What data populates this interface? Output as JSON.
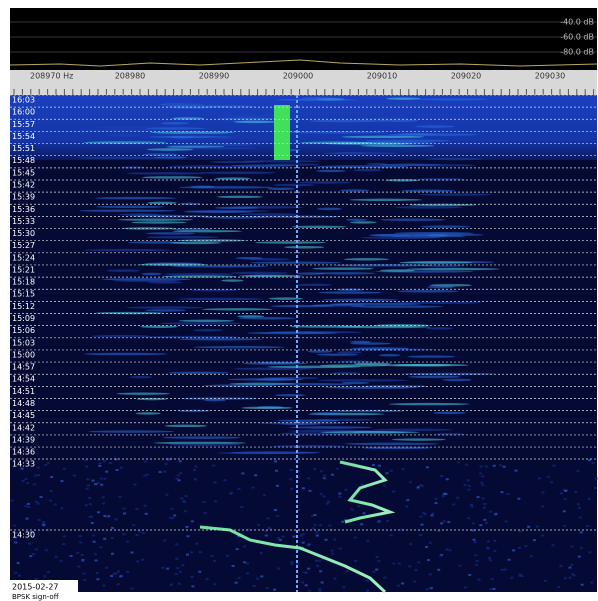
{
  "db_scale": {
    "labels": [
      "-40.0 dB",
      "-60.0 dB",
      "-80.0 dB"
    ]
  },
  "frequency_axis": {
    "labels": [
      "208970 Hz",
      "208980",
      "208990",
      "209000",
      "209010",
      "209020",
      "209030"
    ]
  },
  "time_axis": {
    "labels": [
      "16:03",
      "16:00",
      "15:57",
      "15:54",
      "15:51",
      "15:48",
      "15:45",
      "15:42",
      "15:39",
      "15:36",
      "15:33",
      "15:30",
      "15:27",
      "15:24",
      "15:21",
      "15:18",
      "15:15",
      "15:12",
      "15:09",
      "15:06",
      "15:03",
      "15:00",
      "14:57",
      "14:54",
      "14:51",
      "14:48",
      "14:45",
      "14:42",
      "14:39",
      "14:36",
      "14:33",
      "14:30"
    ]
  },
  "footer": {
    "date": "2015-02-27",
    "note": "BPSK sign-off"
  }
}
